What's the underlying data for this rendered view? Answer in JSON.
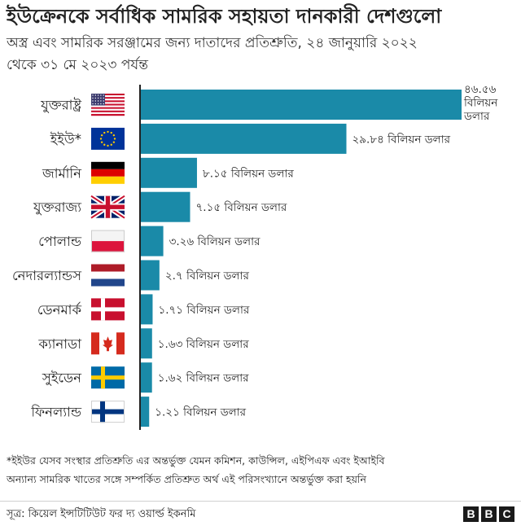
{
  "title": "ইউক্রেনকে সর্বাধিক সামরিক সহায়তা দানকারী দেশগুলো",
  "subtitle": {
    "line1": "অস্ত্র এবং সামরিক সরঞ্জামের জন্য দাতাদের প্রতিশ্রুতি, ২৪ জানুয়ারি ২০২২",
    "line2": "থেকে ৩১ মে ২০২৩ পর্যন্ত"
  },
  "chart_data": {
    "type": "bar",
    "orientation": "horizontal",
    "title": "ইউক্রেনকে সর্বাধিক সামরিক সহায়তা দানকারী দেশগুলো",
    "unit": "বিলিয়ন ডলার",
    "xlim": [
      0,
      46.56
    ],
    "bar_color": "#1a8aa8",
    "categories": [
      "যুক্তরাষ্ট্র",
      "ইইউ*",
      "জার্মানি",
      "যুক্তরাজ্য",
      "পোলান্ড",
      "নেদারল্যান্ডস",
      "ডেনমার্ক",
      "ক্যানাডা",
      "সুইডেন",
      "ফিনল্যান্ড"
    ],
    "values": [
      46.56,
      29.84,
      8.15,
      7.15,
      3.26,
      2.7,
      1.71,
      1.63,
      1.62,
      1.21
    ],
    "labels": [
      "৪৬.৫৬ বিলিয়ন ডলার",
      "২৯.৮৪ বিলিয়ন ডলার",
      "৮.১৫ বিলিয়ন ডলার",
      "৭.১৫ বিলিয়ন ডলার",
      "৩.২৬ বিলিয়ন ডলার",
      "২.৭ বিলিয়ন ডলার",
      "১.৭১ বিলিয়ন ডলার",
      "১.৬৩ বিলিয়ন ডলার",
      "১.৬২ বিলিয়ন ডলার",
      "১.২১ বিলিয়ন ডলার"
    ],
    "first_label_lines": [
      "৪৬.৫৬",
      "বিলিয়ন",
      "ডলার"
    ],
    "flags": [
      "us-flag",
      "eu-flag",
      "germany-flag",
      "uk-flag",
      "poland-flag",
      "netherlands-flag",
      "denmark-flag",
      "canada-flag",
      "sweden-flag",
      "finland-flag"
    ]
  },
  "footnote": {
    "line1": "*ইইউর যেসব সংস্থার প্রতিশ্রুতি এর অন্তর্ভুক্ত যেমন কমিশন, কাউন্সিল, এইপিএফ এবং ইআইবি",
    "line2": "অন্যান্য সামরিক খাতের সঙ্গে সম্পর্কিত প্রতিশ্রুত অর্থ এই পরিসংখ্যানে অন্তর্ভুক্ত করা হয়নি"
  },
  "source": "সূত্র: কিয়েল ইন্সটিটিউট ফর দ্য ওয়ার্ল্ড ইকনমি",
  "logo": [
    "B",
    "B",
    "C"
  ]
}
